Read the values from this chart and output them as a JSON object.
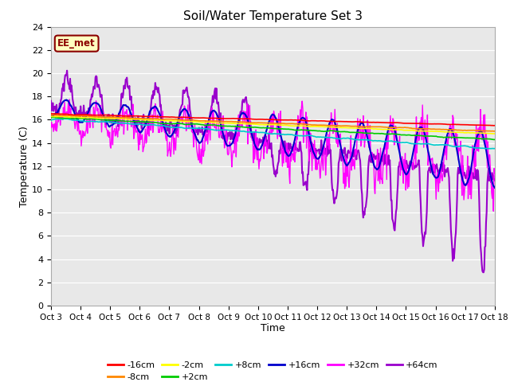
{
  "title": "Soil/Water Temperature Set 3",
  "xlabel": "Time",
  "ylabel": "Temperature (C)",
  "ylim": [
    0,
    24
  ],
  "yticks": [
    0,
    2,
    4,
    6,
    8,
    10,
    12,
    14,
    16,
    18,
    20,
    22,
    24
  ],
  "x_labels": [
    "Oct 3",
    "Oct 4",
    "Oct 5",
    "Oct 6",
    "Oct 7",
    "Oct 8",
    "Oct 9",
    "Oct 10",
    "Oct 11",
    "Oct 12",
    "Oct 13",
    "Oct 14",
    "Oct 15",
    "Oct 16",
    "Oct 17",
    "Oct 18"
  ],
  "num_days": 15,
  "pts_per_day": 48,
  "series": {
    "-16cm": {
      "color": "#FF0000"
    },
    "-8cm": {
      "color": "#FF8800"
    },
    "-2cm": {
      "color": "#FFFF00"
    },
    "+2cm": {
      "color": "#00CC00"
    },
    "+8cm": {
      "color": "#00CCCC"
    },
    "+16cm": {
      "color": "#0000CC"
    },
    "+32cm": {
      "color": "#FF00FF"
    },
    "+64cm": {
      "color": "#9900CC"
    }
  },
  "legend_order": [
    "-16cm",
    "-8cm",
    "-2cm",
    "+2cm",
    "+8cm",
    "+16cm",
    "+32cm",
    "+64cm"
  ],
  "annotation_text": "EE_met",
  "bg_color": "#E8E8E8",
  "fig_bg": "#FFFFFF",
  "plot_bg": "#E8E8E8",
  "grid_color": "#FFFFFF",
  "spine_color": "#AAAAAA"
}
